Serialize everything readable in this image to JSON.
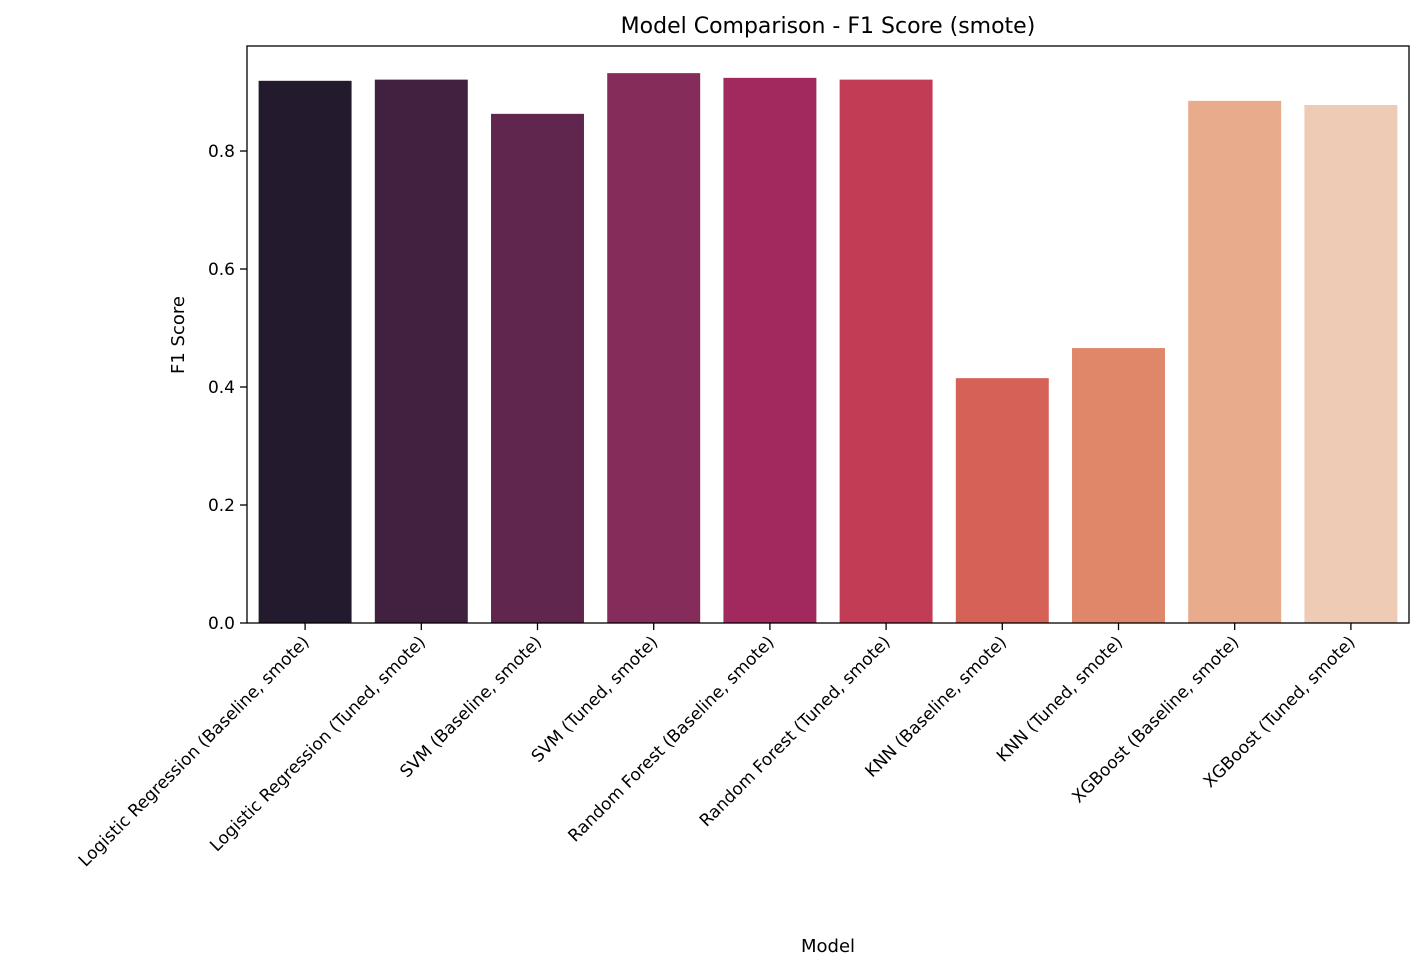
{
  "chart_data": {
    "type": "bar",
    "title": "Model Comparison - F1 Score (smote)",
    "xlabel": "Model",
    "ylabel": "F1 Score",
    "ylim": [
      0,
      0.978
    ],
    "yticks": [
      0.0,
      0.2,
      0.4,
      0.6,
      0.8
    ],
    "ytick_labels": [
      "0.0",
      "0.2",
      "0.4",
      "0.6",
      "0.8"
    ],
    "grid": false,
    "categories": [
      "Logistic Regression (Baseline, smote)",
      "Logistic Regression (Tuned, smote)",
      "SVM (Baseline, smote)",
      "SVM (Tuned, smote)",
      "Random Forest (Baseline, smote)",
      "Random Forest (Tuned, smote)",
      "KNN (Baseline, smote)",
      "KNN (Tuned, smote)",
      "XGBoost (Baseline, smote)",
      "XGBoost (Tuned, smote)"
    ],
    "values": [
      0.919,
      0.921,
      0.863,
      0.932,
      0.924,
      0.921,
      0.415,
      0.466,
      0.885,
      0.878
    ],
    "colors": [
      "#231a2e",
      "#402140",
      "#60264e",
      "#852c5a",
      "#a2295d",
      "#c23c55",
      "#d66157",
      "#e0876a",
      "#e8ab8c",
      "#edcbb4"
    ]
  }
}
